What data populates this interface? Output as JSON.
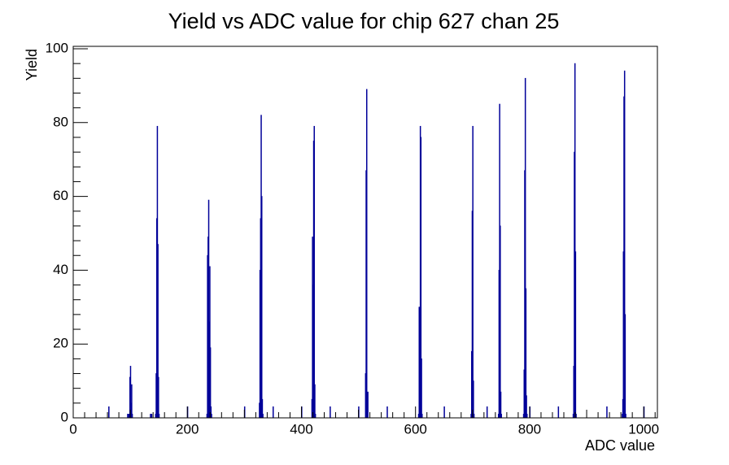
{
  "chart_data": {
    "type": "histogram",
    "title": "Yield vs ADC value for chip 627 chan 25",
    "xlabel": "ADC value",
    "ylabel": "Yield",
    "color": "#000099",
    "bins": [
      0,
      62,
      63,
      95,
      96,
      97,
      98,
      99,
      100,
      101,
      102,
      103,
      104,
      135,
      136,
      137,
      138,
      144,
      145,
      146,
      147,
      148,
      149,
      150,
      151,
      200,
      201,
      234,
      235,
      236,
      237,
      238,
      239,
      240,
      241,
      242,
      243,
      300,
      301,
      326,
      327,
      328,
      329,
      330,
      331,
      332,
      333,
      350,
      351,
      400,
      401,
      418,
      419,
      420,
      421,
      422,
      423,
      424,
      425,
      450,
      451,
      500,
      501,
      512,
      513,
      514,
      515,
      516,
      517,
      550,
      551,
      605,
      606,
      607,
      608,
      609,
      610,
      611,
      612,
      650,
      651,
      697,
      698,
      699,
      700,
      701,
      702,
      703,
      725,
      726,
      745,
      746,
      747,
      748,
      749,
      750,
      751,
      789,
      790,
      791,
      792,
      793,
      794,
      795,
      796,
      800,
      801,
      850,
      851,
      876,
      877,
      878,
      879,
      880,
      881,
      882,
      935,
      936,
      962,
      963,
      964,
      965,
      966,
      967,
      968,
      969,
      1000,
      1001,
      1024
    ],
    "values": [
      0,
      3,
      0,
      1,
      0,
      1,
      0,
      11,
      14,
      4,
      9,
      1,
      0,
      1,
      0,
      1,
      0,
      1,
      12,
      54,
      79,
      47,
      11,
      1,
      0,
      3,
      0,
      1,
      44,
      49,
      59,
      26,
      41,
      19,
      3,
      1,
      0,
      3,
      0,
      4,
      40,
      54,
      82,
      60,
      5,
      1,
      0,
      3,
      0,
      3,
      0,
      5,
      49,
      36,
      75,
      79,
      9,
      1,
      0,
      3,
      0,
      3,
      0,
      12,
      67,
      89,
      5,
      7,
      0,
      3,
      0,
      1,
      30,
      12,
      79,
      76,
      16,
      1,
      0,
      3,
      0,
      1,
      18,
      56,
      79,
      10,
      1,
      0,
      3,
      0,
      1,
      40,
      85,
      52,
      7,
      1,
      0,
      1,
      13,
      67,
      92,
      35,
      6,
      1,
      0,
      3,
      0,
      3,
      0,
      1,
      14,
      72,
      96,
      45,
      1,
      0,
      3,
      0,
      1,
      5,
      45,
      87,
      94,
      28,
      1,
      0,
      3,
      0
    ],
    "xlim": [
      0,
      1024
    ],
    "ylim": [
      0,
      100
    ],
    "xticks": [
      0,
      200,
      400,
      600,
      800,
      1000
    ],
    "yticks": [
      0,
      20,
      40,
      60,
      80,
      100
    ]
  }
}
